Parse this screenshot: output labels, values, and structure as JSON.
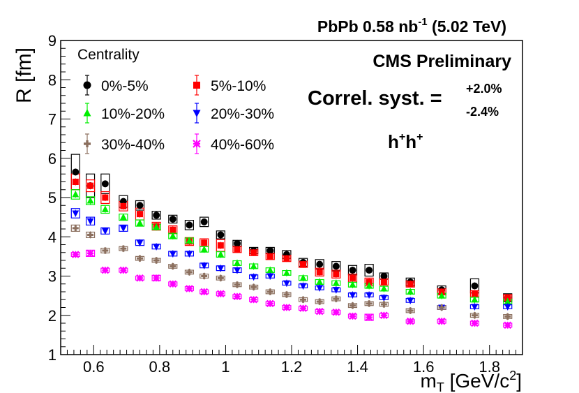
{
  "chart_data": {
    "type": "scatter",
    "title": "PbPb 0.58 nb^-1 (5.02 TeV)",
    "title_parts": [
      "PbPb 0.58 nb",
      "-1",
      " (5.02 TeV)"
    ],
    "experiment_label": "CMS Preliminary",
    "syst_label": "Correl. syst. =",
    "syst_up": "+2.0%",
    "syst_down": "-2.4%",
    "pair_label": "h⁺h⁺",
    "pair_parts": [
      "h",
      "+",
      "h",
      "+"
    ],
    "xlabel": "m_T [GeV/c^2]",
    "xlabel_parts": [
      "m",
      "T",
      " [GeV/c",
      "2",
      "]"
    ],
    "ylabel": "R [fm]",
    "xlim": [
      0.5,
      1.9
    ],
    "ylim": [
      1,
      9
    ],
    "xticks": [
      "0.6",
      "0.8",
      "1",
      "1.2",
      "1.4",
      "1.6",
      "1.8"
    ],
    "xtick_values": [
      0.6,
      0.8,
      1.0,
      1.2,
      1.4,
      1.6,
      1.8
    ],
    "yticks": [
      "1",
      "2",
      "3",
      "4",
      "5",
      "6",
      "7",
      "8",
      "9"
    ],
    "ytick_values": [
      1,
      2,
      3,
      4,
      5,
      6,
      7,
      8,
      9
    ],
    "legend_title": "Centrality",
    "legend_position": "top-left",
    "grid": false,
    "x": [
      0.545,
      0.59,
      0.635,
      0.69,
      0.74,
      0.79,
      0.84,
      0.89,
      0.935,
      0.985,
      1.035,
      1.085,
      1.135,
      1.185,
      1.235,
      1.285,
      1.335,
      1.385,
      1.435,
      1.48,
      1.56,
      1.655,
      1.755,
      1.855
    ],
    "series": [
      {
        "name": "0%-5%",
        "marker": "circle",
        "color": "#000000",
        "values": [
          5.65,
          5.3,
          5.35,
          4.9,
          4.8,
          4.55,
          4.45,
          4.3,
          4.38,
          4.05,
          3.83,
          3.65,
          3.65,
          3.55,
          3.35,
          3.3,
          3.25,
          3.15,
          3.15,
          3.0,
          2.85,
          2.65,
          2.75,
          2.45
        ],
        "syst": [
          0.45,
          0.3,
          0.25,
          0.15,
          0.12,
          0.1,
          0.1,
          0.12,
          0.12,
          0.1,
          0.08,
          0.08,
          0.08,
          0.1,
          0.1,
          0.12,
          0.12,
          0.12,
          0.15,
          0.08,
          0.1,
          0.1,
          0.18,
          0.1
        ]
      },
      {
        "name": "5%-10%",
        "marker": "square",
        "color": "#ff0000",
        "values": [
          5.4,
          5.3,
          5.0,
          4.78,
          4.58,
          4.27,
          4.18,
          3.88,
          3.85,
          3.78,
          3.68,
          3.6,
          3.5,
          3.45,
          3.3,
          3.1,
          3.05,
          2.95,
          2.85,
          2.85,
          2.8,
          2.6,
          2.55,
          2.45
        ],
        "syst": [
          0.2,
          0.15,
          0.15,
          0.12,
          0.15,
          0.1,
          0.1,
          0.1,
          0.1,
          0.15,
          0.08,
          0.08,
          0.08,
          0.08,
          0.08,
          0.1,
          0.1,
          0.1,
          0.1,
          0.08,
          0.08,
          0.08,
          0.08,
          0.08
        ]
      },
      {
        "name": "10%-20%",
        "marker": "triangle-up",
        "color": "#00ee00",
        "values": [
          5.08,
          4.92,
          4.7,
          4.5,
          4.35,
          4.25,
          4.02,
          3.9,
          3.68,
          3.55,
          3.33,
          3.25,
          3.15,
          3.08,
          2.95,
          2.85,
          2.82,
          2.78,
          2.75,
          2.68,
          2.6,
          2.5,
          2.4,
          2.35
        ],
        "syst": [
          0.12,
          0.1,
          0.1,
          0.08,
          0.08,
          0.07,
          0.07,
          0.07,
          0.07,
          0.07,
          0.06,
          0.06,
          0.06,
          0.06,
          0.06,
          0.06,
          0.06,
          0.06,
          0.06,
          0.06,
          0.06,
          0.06,
          0.06,
          0.06
        ]
      },
      {
        "name": "20%-30%",
        "marker": "triangle-down",
        "color": "#0000ff",
        "values": [
          4.6,
          4.4,
          4.15,
          4.22,
          3.85,
          3.75,
          3.57,
          3.57,
          3.27,
          3.2,
          3.15,
          2.98,
          3.0,
          2.82,
          2.75,
          2.7,
          2.65,
          2.52,
          2.52,
          2.45,
          2.38,
          2.2,
          2.22,
          2.22
        ],
        "syst": [
          0.12,
          0.1,
          0.08,
          0.08,
          0.07,
          0.06,
          0.06,
          0.06,
          0.06,
          0.06,
          0.06,
          0.05,
          0.05,
          0.05,
          0.05,
          0.05,
          0.05,
          0.05,
          0.05,
          0.05,
          0.05,
          0.05,
          0.05,
          0.05
        ]
      },
      {
        "name": "30%-40%",
        "marker": "cross",
        "color": "#8b6f5e",
        "values": [
          4.22,
          4.05,
          3.65,
          3.7,
          3.45,
          3.4,
          3.25,
          3.1,
          3.0,
          2.95,
          2.78,
          2.72,
          2.6,
          2.53,
          2.4,
          2.35,
          2.42,
          2.25,
          2.3,
          2.28,
          2.12,
          2.2,
          2.0,
          1.97
        ],
        "syst": [
          0.08,
          0.07,
          0.06,
          0.05,
          0.05,
          0.05,
          0.05,
          0.05,
          0.05,
          0.05,
          0.05,
          0.05,
          0.05,
          0.05,
          0.05,
          0.05,
          0.05,
          0.05,
          0.05,
          0.05,
          0.05,
          0.05,
          0.05,
          0.05
        ]
      },
      {
        "name": "40%-60%",
        "marker": "star",
        "color": "#ff00ff",
        "values": [
          3.55,
          3.58,
          3.15,
          3.15,
          2.95,
          2.95,
          2.8,
          2.68,
          2.6,
          2.55,
          2.48,
          2.4,
          2.3,
          2.2,
          2.18,
          2.1,
          2.08,
          1.98,
          1.95,
          2.0,
          1.85,
          1.85,
          1.8,
          1.75
        ],
        "syst": [
          0.05,
          0.08,
          0.05,
          0.05,
          0.05,
          0.07,
          0.05,
          0.05,
          0.05,
          0.05,
          0.05,
          0.05,
          0.05,
          0.05,
          0.05,
          0.05,
          0.05,
          0.05,
          0.08,
          0.05,
          0.04,
          0.05,
          0.05,
          0.05
        ]
      }
    ]
  }
}
